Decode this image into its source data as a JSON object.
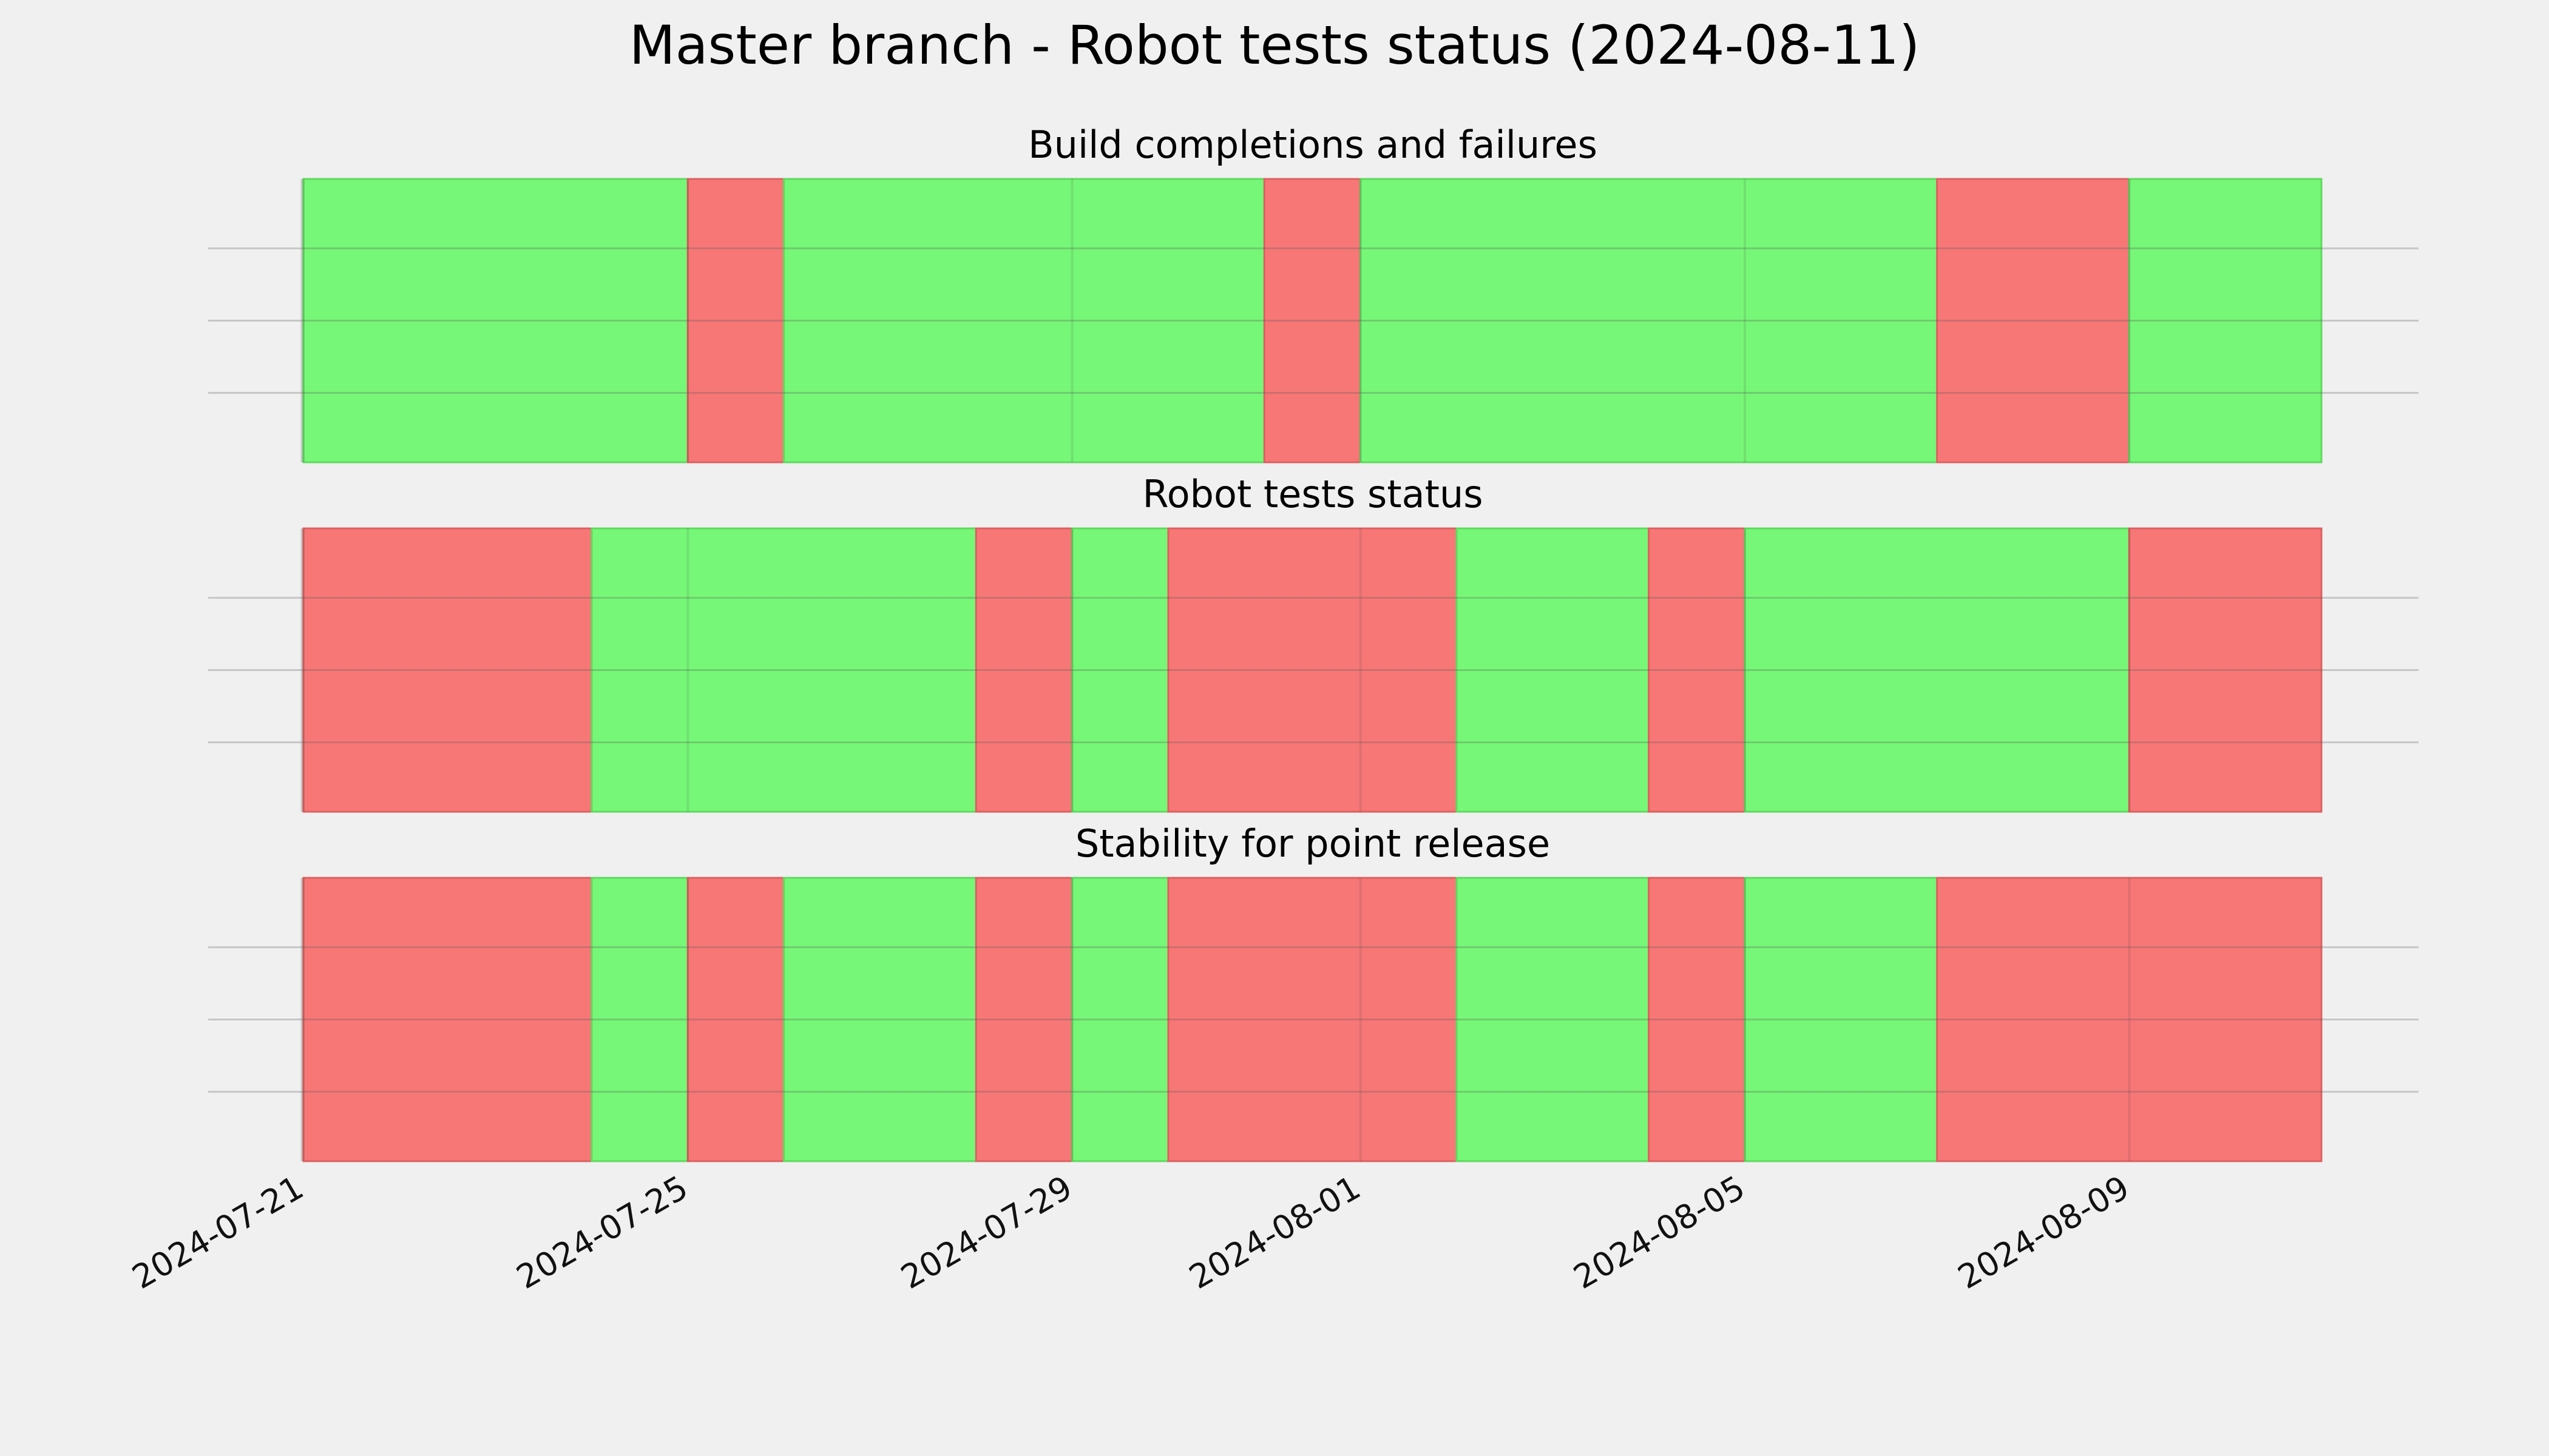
{
  "chart_data": {
    "type": "timeline",
    "title": "Master branch - Robot tests status (2024-08-11)",
    "x_range": [
      "2024-07-21",
      "2024-08-11"
    ],
    "x_ticks": [
      "2024-07-21",
      "2024-07-25",
      "2024-07-29",
      "2024-08-01",
      "2024-08-05",
      "2024-08-09"
    ],
    "grid": true,
    "status_colors": {
      "pass": "#77f777",
      "fail": "#f77777"
    },
    "panels": [
      {
        "title": "Build completions and failures",
        "segments": [
          {
            "start": "2024-07-21",
            "end": "2024-07-25",
            "status": "pass"
          },
          {
            "start": "2024-07-25",
            "end": "2024-07-26",
            "status": "fail"
          },
          {
            "start": "2024-07-26",
            "end": "2024-07-31",
            "status": "pass"
          },
          {
            "start": "2024-07-31",
            "end": "2024-08-01",
            "status": "fail"
          },
          {
            "start": "2024-08-01",
            "end": "2024-08-07",
            "status": "pass"
          },
          {
            "start": "2024-08-07",
            "end": "2024-08-09",
            "status": "fail"
          },
          {
            "start": "2024-08-09",
            "end": "2024-08-11",
            "status": "pass"
          }
        ]
      },
      {
        "title": "Robot tests status",
        "segments": [
          {
            "start": "2024-07-21",
            "end": "2024-07-24",
            "status": "fail"
          },
          {
            "start": "2024-07-24",
            "end": "2024-07-28",
            "status": "pass"
          },
          {
            "start": "2024-07-28",
            "end": "2024-07-29",
            "status": "fail"
          },
          {
            "start": "2024-07-29",
            "end": "2024-07-30",
            "status": "pass"
          },
          {
            "start": "2024-07-30",
            "end": "2024-08-02",
            "status": "fail"
          },
          {
            "start": "2024-08-02",
            "end": "2024-08-04",
            "status": "pass"
          },
          {
            "start": "2024-08-04",
            "end": "2024-08-05",
            "status": "fail"
          },
          {
            "start": "2024-08-05",
            "end": "2024-08-09",
            "status": "pass"
          },
          {
            "start": "2024-08-09",
            "end": "2024-08-11",
            "status": "fail"
          }
        ]
      },
      {
        "title": "Stability for point release",
        "segments": [
          {
            "start": "2024-07-21",
            "end": "2024-07-24",
            "status": "fail"
          },
          {
            "start": "2024-07-24",
            "end": "2024-07-25",
            "status": "pass"
          },
          {
            "start": "2024-07-25",
            "end": "2024-07-26",
            "status": "fail"
          },
          {
            "start": "2024-07-26",
            "end": "2024-07-28",
            "status": "pass"
          },
          {
            "start": "2024-07-28",
            "end": "2024-07-29",
            "status": "fail"
          },
          {
            "start": "2024-07-29",
            "end": "2024-07-30",
            "status": "pass"
          },
          {
            "start": "2024-07-30",
            "end": "2024-08-02",
            "status": "fail"
          },
          {
            "start": "2024-08-02",
            "end": "2024-08-04",
            "status": "pass"
          },
          {
            "start": "2024-08-04",
            "end": "2024-08-05",
            "status": "fail"
          },
          {
            "start": "2024-08-05",
            "end": "2024-08-07",
            "status": "pass"
          },
          {
            "start": "2024-08-07",
            "end": "2024-08-11",
            "status": "fail"
          }
        ]
      }
    ]
  }
}
